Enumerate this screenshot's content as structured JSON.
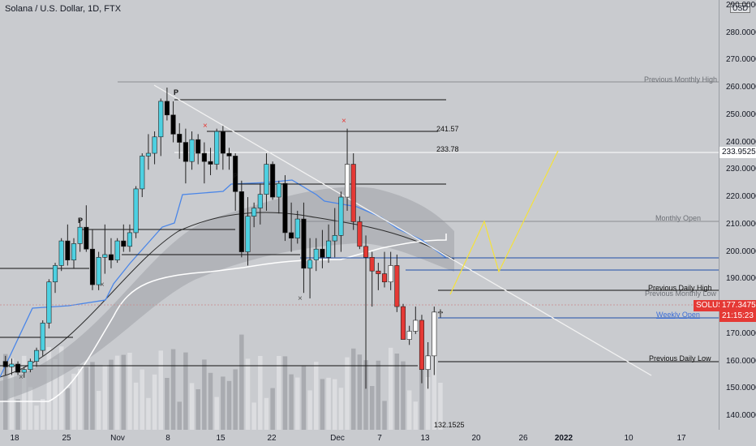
{
  "title": "Solana / U.S. Dollar, 1D, FTX",
  "currency": "USD",
  "colors": {
    "bull": "#4dd0e1",
    "bear": "#000000",
    "bull_recent": "#ffffff",
    "bear_recent": "#e53935",
    "background": "#c9cbcf",
    "trend": "#f2f2f2",
    "blue_line": "#4a86e8",
    "yellow": "#f5e23a"
  },
  "chart_data": {
    "type": "candlestick",
    "ylim": [
      135,
      292
    ],
    "y_ticks": [
      "290.0000",
      "280.0000",
      "270.0000",
      "260.0000",
      "250.0000",
      "240.0000",
      "230.0000",
      "220.0000",
      "210.0000",
      "200.0000",
      "190.0000",
      "180.0000",
      "170.0000",
      "160.0000",
      "150.0000",
      "140.0000"
    ],
    "x_ticks": [
      "18",
      "25",
      "Nov",
      "8",
      "15",
      "22",
      "Dec",
      "7",
      "13",
      "20",
      "26",
      "2022",
      "10",
      "17"
    ],
    "candles": [
      [
        160,
        162,
        155,
        158
      ],
      [
        158,
        161,
        155,
        159
      ],
      [
        159,
        160,
        155,
        156
      ],
      [
        156,
        158,
        154,
        157
      ],
      [
        157,
        161,
        156,
        160
      ],
      [
        160,
        165,
        158,
        164
      ],
      [
        164,
        175,
        162,
        174
      ],
      [
        174,
        190,
        172,
        189
      ],
      [
        189,
        196,
        185,
        195
      ],
      [
        195,
        205,
        193,
        204
      ],
      [
        204,
        210,
        195,
        197
      ],
      [
        197,
        205,
        194,
        203
      ],
      [
        203,
        212,
        200,
        209
      ],
      [
        209,
        217,
        200,
        201
      ],
      [
        201,
        208,
        186,
        188
      ],
      [
        188,
        200,
        186,
        198
      ],
      [
        198,
        210,
        192,
        199
      ],
      [
        199,
        205,
        194,
        197
      ],
      [
        197,
        205,
        196,
        204
      ],
      [
        204,
        210,
        200,
        202
      ],
      [
        202,
        210,
        200,
        207
      ],
      [
        207,
        224,
        205,
        223
      ],
      [
        223,
        236,
        220,
        235
      ],
      [
        235,
        243,
        230,
        236
      ],
      [
        236,
        244,
        232,
        242
      ],
      [
        242,
        256,
        235,
        255
      ],
      [
        255,
        260,
        248,
        250
      ],
      [
        250,
        255,
        240,
        243
      ],
      [
        243,
        247,
        234,
        240
      ],
      [
        240,
        245,
        225,
        233
      ],
      [
        233,
        244,
        230,
        241
      ],
      [
        241,
        243,
        232,
        236
      ],
      [
        236,
        240,
        225,
        233
      ],
      [
        233,
        238,
        228,
        232
      ],
      [
        232,
        245,
        230,
        244
      ],
      [
        244,
        246,
        230,
        236
      ],
      [
        236,
        238,
        230,
        235
      ],
      [
        235,
        236,
        215,
        222
      ],
      [
        222,
        226,
        198,
        200
      ],
      [
        200,
        220,
        195,
        213
      ],
      [
        213,
        218,
        209,
        216
      ],
      [
        216,
        225,
        210,
        221
      ],
      [
        221,
        236,
        215,
        232
      ],
      [
        232,
        233,
        219,
        220
      ],
      [
        220,
        226,
        214,
        225
      ],
      [
        225,
        228,
        204,
        207
      ],
      [
        207,
        218,
        200,
        205
      ],
      [
        205,
        215,
        203,
        212
      ],
      [
        212,
        218,
        185,
        194
      ],
      [
        194,
        205,
        183,
        197
      ],
      [
        197,
        205,
        193,
        201
      ],
      [
        201,
        208,
        194,
        198
      ],
      [
        198,
        210,
        196,
        204
      ],
      [
        204,
        216,
        198,
        206
      ],
      [
        206,
        222,
        200,
        220
      ],
      [
        220,
        245,
        215,
        232
      ],
      [
        232,
        236,
        208,
        211
      ],
      [
        211,
        213,
        201,
        202
      ],
      [
        202,
        206,
        150,
        198
      ],
      [
        198,
        200,
        180,
        193
      ],
      [
        193,
        196,
        186,
        192
      ],
      [
        192,
        200,
        187,
        189
      ],
      [
        189,
        200,
        186,
        195
      ],
      [
        195,
        199,
        178,
        180
      ],
      [
        180,
        181,
        168,
        168
      ],
      [
        168,
        173,
        166,
        171
      ],
      [
        171,
        180,
        170,
        175
      ],
      [
        175,
        177,
        152,
        157
      ],
      [
        157,
        167,
        150,
        162
      ],
      [
        162,
        180,
        155,
        178
      ],
      [
        178,
        179,
        176,
        178
      ]
    ],
    "price_lines": [
      {
        "label": "Previous Monthly High",
        "value": 259.9
      },
      {
        "label": "241.57",
        "value": 241.57
      },
      {
        "label": "233.78",
        "value": 233.78
      },
      {
        "label": "Monthly Open",
        "value": 208.3
      },
      {
        "label": "Previous Daily High",
        "value": 182.6
      },
      {
        "label": "Previous Monthly Low",
        "value": 181.3
      },
      {
        "label": "Weekly Open",
        "value": 173.4
      },
      {
        "label": "Previous Daily Low",
        "value": 157.0
      },
      {
        "label": "132.1525",
        "value": 132.15
      }
    ],
    "price_tags": [
      {
        "label": "233.9525",
        "value": 233.9525
      },
      {
        "label": "SOLUSD",
        "value": 177.3475
      },
      {
        "label": "177.3475",
        "value": 177.3475
      },
      {
        "label": "21:15:23",
        "value": 175.6
      }
    ],
    "pattern_labels": [
      "P",
      "P",
      "P"
    ]
  }
}
